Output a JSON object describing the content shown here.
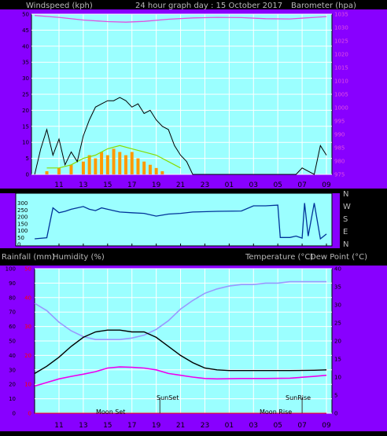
{
  "header": {
    "windspeed_label": "Windspeed (kph)",
    "graph_title": "24 hour graph day : 15 October 2017",
    "barometer_label": "Barometer (hpa)",
    "rain_label": "Rainfall (mm)",
    "humidity_label": "Humidity (%)",
    "temp_label": "Temperature (°C)",
    "dew_label": "Dew Point (°C)"
  },
  "colors": {
    "frame_purple": "#8800ff",
    "plot_bg": "#9bffff",
    "grid": "#ffffff",
    "wind_avg": "#000000",
    "wind_gust_bar": "#ff9900",
    "wind_green": "#88dd00",
    "pressure": "#e050e0",
    "direction": "#003399",
    "humidity": "#9999ff",
    "temperature": "#000000",
    "dew_point": "#ee00ee",
    "rain_axis": "#ff0000"
  },
  "x_ticks": [
    "11",
    "13",
    "15",
    "17",
    "19",
    "21",
    "23",
    "01",
    "03",
    "05",
    "07",
    "09"
  ],
  "direction_labels": [
    "N",
    "W",
    "S",
    "E",
    "N"
  ],
  "annotations": {
    "moon_set": "Moon Set",
    "sun_set": "SunSet",
    "moon_rise": "Moon Rise",
    "sun_rise": "SunRise"
  },
  "chart_data": [
    {
      "type": "line",
      "title": "24 hour graph day : 15 October 2017",
      "xlabel": "",
      "ylabel": "Windspeed (kph)",
      "y2label": "Barometer (hpa)",
      "x_range_hours": [
        9.0,
        33.0
      ],
      "ylim": [
        0,
        50
      ],
      "y_ticks": [
        0,
        5,
        10,
        15,
        20,
        25,
        30,
        35,
        40,
        45,
        50
      ],
      "y2lim": [
        975,
        1035
      ],
      "y2_ticks": [
        975,
        980,
        985,
        990,
        995,
        1000,
        1005,
        1010,
        1015,
        1020,
        1025,
        1030,
        1035
      ],
      "grid": true,
      "series": [
        {
          "name": "Barometer (hpa)",
          "axis": "y2",
          "x": [
            9.0,
            11.0,
            13.0,
            15.0,
            16.5,
            18.0,
            20.0,
            22.0,
            24.0,
            26.0,
            28.0,
            30.0,
            32.0,
            33.0
          ],
          "y": [
            1034.5,
            1033.8,
            1032.8,
            1032.2,
            1032.0,
            1032.3,
            1033.1,
            1033.6,
            1033.8,
            1033.7,
            1033.3,
            1033.2,
            1033.8,
            1034.1
          ]
        },
        {
          "name": "Windspeed",
          "axis": "y",
          "x": [
            9.0,
            9.5,
            10.0,
            10.5,
            11.0,
            11.5,
            12.0,
            12.5,
            13.0,
            13.5,
            14.0,
            14.5,
            15.0,
            15.5,
            16.0,
            16.5,
            17.0,
            17.5,
            18.0,
            18.5,
            19.0,
            19.5,
            20.0,
            20.5,
            21.0,
            21.5,
            22.0,
            30.5,
            31.0,
            31.5,
            32.0,
            32.5,
            33.0
          ],
          "y": [
            0,
            8,
            14,
            6,
            11,
            3,
            7,
            4,
            12,
            17,
            21,
            22,
            23,
            23,
            24,
            23,
            21,
            22,
            19,
            20,
            17,
            15,
            14,
            9,
            6,
            4,
            0,
            0,
            2,
            1,
            0,
            9,
            6
          ]
        },
        {
          "name": "Wind gust (orange)",
          "axis": "y",
          "x": [
            10.0,
            11.0,
            12.0,
            13.0,
            13.5,
            14.0,
            14.5,
            15.0,
            15.5,
            16.0,
            16.5,
            17.0,
            17.5,
            18.0,
            18.5,
            19.0,
            19.5
          ],
          "y": [
            1,
            2,
            3,
            4,
            6,
            5,
            7,
            6,
            8,
            7,
            6,
            7,
            5,
            4,
            3,
            2,
            1
          ]
        },
        {
          "name": "Wind (green)",
          "axis": "y",
          "x": [
            10.0,
            11.0,
            12.0,
            13.0,
            14.0,
            15.0,
            16.0,
            17.0,
            18.0,
            19.0,
            20.0,
            21.0
          ],
          "y": [
            2,
            2,
            3,
            5,
            6,
            8,
            9,
            8,
            7,
            6,
            4,
            2
          ]
        }
      ]
    },
    {
      "type": "line",
      "ylabel": "Wind direction",
      "y_ticks": [
        0,
        50,
        100,
        150,
        200,
        250,
        300
      ],
      "ylim": [
        0,
        360
      ],
      "series": [
        {
          "name": "Wind direction",
          "x": [
            9.0,
            10.0,
            10.5,
            11.0,
            11.5,
            12.0,
            12.5,
            13.0,
            13.5,
            14.0,
            14.5,
            15.0,
            15.5,
            16.0,
            17.0,
            18.0,
            19.0,
            20.0,
            21.0,
            22.0,
            24.0,
            26.0,
            27.0,
            28.0,
            29.0,
            29.2,
            30.0,
            30.5,
            31.0,
            31.2,
            31.5,
            32.0,
            32.5,
            33.0
          ],
          "y": [
            40,
            48,
            265,
            230,
            240,
            255,
            265,
            275,
            255,
            245,
            265,
            255,
            245,
            235,
            230,
            225,
            205,
            220,
            225,
            235,
            240,
            242,
            280,
            280,
            285,
            50,
            50,
            60,
            45,
            300,
            60,
            300,
            40,
            75
          ]
        }
      ]
    },
    {
      "type": "line",
      "ylabel": "Humidity (%)",
      "y2label": "Temperature (°C)",
      "ylim": [
        0,
        100
      ],
      "y_ticks": [
        0,
        10,
        20,
        30,
        40,
        50,
        60,
        70,
        80,
        90,
        100
      ],
      "y2lim": [
        0,
        40
      ],
      "y2_ticks": [
        0,
        5,
        10,
        15,
        20,
        25,
        30,
        35,
        40
      ],
      "rain_ylim": [
        0,
        50
      ],
      "rain_ticks": [
        0,
        10,
        20,
        30,
        40,
        50
      ],
      "grid": true,
      "series": [
        {
          "name": "Humidity (%)",
          "axis": "y",
          "x": [
            9.0,
            10.0,
            11.0,
            12.0,
            13.0,
            14.0,
            15.0,
            16.0,
            17.0,
            18.0,
            19.0,
            20.0,
            21.0,
            22.0,
            23.0,
            24.0,
            25.0,
            26.0,
            27.0,
            28.0,
            29.0,
            30.0,
            31.0,
            32.0,
            33.0
          ],
          "y": [
            76,
            71,
            63,
            57,
            53,
            51,
            51,
            51,
            52,
            54,
            58,
            64,
            72,
            78,
            83,
            86,
            88,
            89,
            89,
            90,
            90,
            91,
            91,
            91,
            91
          ]
        },
        {
          "name": "Temperature (°C)",
          "axis": "y2",
          "x": [
            9.0,
            10.0,
            11.0,
            12.0,
            13.0,
            14.0,
            15.0,
            16.0,
            17.0,
            18.0,
            19.0,
            20.0,
            21.0,
            22.0,
            23.0,
            24.0,
            25.0,
            26.0,
            28.0,
            30.0,
            32.0,
            33.0
          ],
          "y": [
            11.0,
            13.0,
            15.5,
            18.5,
            21.0,
            22.5,
            23.0,
            23.0,
            22.5,
            22.5,
            21.0,
            18.5,
            16.0,
            14.0,
            12.5,
            12.0,
            11.8,
            11.8,
            11.8,
            11.8,
            11.9,
            12.0
          ]
        },
        {
          "name": "Dew Point (°C)",
          "axis": "y2",
          "x": [
            9.0,
            10.0,
            11.0,
            12.0,
            13.0,
            14.0,
            15.0,
            16.0,
            17.0,
            18.0,
            19.0,
            20.0,
            21.0,
            22.0,
            23.0,
            24.0,
            26.0,
            28.0,
            30.0,
            32.0,
            33.0
          ],
          "y": [
            7.5,
            8.5,
            9.5,
            10.2,
            10.8,
            11.5,
            12.5,
            12.8,
            12.7,
            12.5,
            12.0,
            11.0,
            10.5,
            10.0,
            9.6,
            9.5,
            9.6,
            9.6,
            9.7,
            10.2,
            10.5
          ]
        },
        {
          "name": "Rainfall (mm)",
          "axis": "rain",
          "x": [
            9.0,
            33.0
          ],
          "y": [
            0,
            0
          ]
        }
      ]
    }
  ]
}
